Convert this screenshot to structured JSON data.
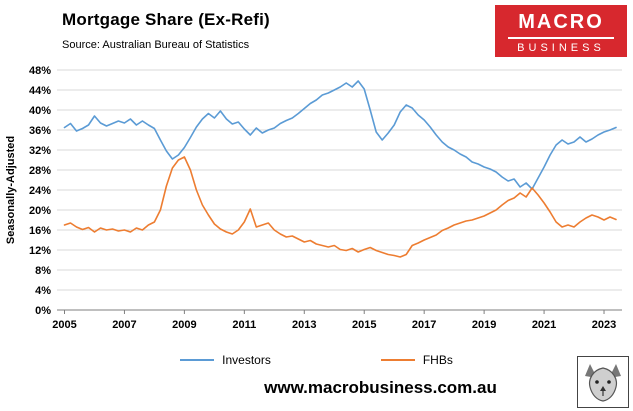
{
  "header": {
    "title": "Mortgage Share (Ex-Refi)",
    "source": "Source: Australian Bureau of Statistics",
    "logo": {
      "line1": "MACRO",
      "line2": "BUSINESS",
      "bg_color": "#d7282e"
    }
  },
  "footer": {
    "url": "www.macrobusiness.com.au"
  },
  "chart_data": {
    "type": "line",
    "title": "Mortgage Share (Ex-Refi)",
    "xlabel": "",
    "ylabel": "Seasonally-Adjusted",
    "ylim": [
      0,
      48
    ],
    "y_tick_step": 4,
    "y_tick_suffix": "%",
    "xlim": [
      2004.75,
      2023.6
    ],
    "x_ticks": [
      2005,
      2007,
      2009,
      2011,
      2013,
      2015,
      2017,
      2019,
      2021,
      2023
    ],
    "grid": "horizontal",
    "legend_position": "bottom",
    "x": [
      2005.0,
      2005.2,
      2005.4,
      2005.6,
      2005.8,
      2006.0,
      2006.2,
      2006.4,
      2006.6,
      2006.8,
      2007.0,
      2007.2,
      2007.4,
      2007.6,
      2007.8,
      2008.0,
      2008.2,
      2008.4,
      2008.6,
      2008.8,
      2009.0,
      2009.2,
      2009.4,
      2009.6,
      2009.8,
      2010.0,
      2010.2,
      2010.4,
      2010.6,
      2010.8,
      2011.0,
      2011.2,
      2011.4,
      2011.6,
      2011.8,
      2012.0,
      2012.2,
      2012.4,
      2012.6,
      2012.8,
      2013.0,
      2013.2,
      2013.4,
      2013.6,
      2013.8,
      2014.0,
      2014.2,
      2014.4,
      2014.6,
      2014.8,
      2015.0,
      2015.2,
      2015.4,
      2015.6,
      2015.8,
      2016.0,
      2016.2,
      2016.4,
      2016.6,
      2016.8,
      2017.0,
      2017.2,
      2017.4,
      2017.6,
      2017.8,
      2018.0,
      2018.2,
      2018.4,
      2018.6,
      2018.8,
      2019.0,
      2019.2,
      2019.4,
      2019.6,
      2019.8,
      2020.0,
      2020.2,
      2020.4,
      2020.6,
      2020.8,
      2021.0,
      2021.2,
      2021.4,
      2021.6,
      2021.8,
      2022.0,
      2022.2,
      2022.4,
      2022.6,
      2022.8,
      2023.0,
      2023.2,
      2023.4
    ],
    "series": [
      {
        "name": "Investors",
        "color": "#5B9BD5",
        "values": [
          36.5,
          37.3,
          35.8,
          36.3,
          37.0,
          38.8,
          37.4,
          36.8,
          37.3,
          37.8,
          37.4,
          38.2,
          37.0,
          37.8,
          37.0,
          36.3,
          34.0,
          31.8,
          30.2,
          31.0,
          32.5,
          34.5,
          36.6,
          38.2,
          39.3,
          38.4,
          39.8,
          38.2,
          37.2,
          37.6,
          36.2,
          35.0,
          36.4,
          35.4,
          36.0,
          36.4,
          37.3,
          37.9,
          38.4,
          39.3,
          40.3,
          41.3,
          42.0,
          43.0,
          43.4,
          44.0,
          44.6,
          45.4,
          44.6,
          45.8,
          44.2,
          40.0,
          35.6,
          34.0,
          35.4,
          37.0,
          39.6,
          41.0,
          40.4,
          39.0,
          38.0,
          36.6,
          35.0,
          33.6,
          32.6,
          32.0,
          31.2,
          30.6,
          29.6,
          29.2,
          28.6,
          28.2,
          27.6,
          26.6,
          25.8,
          26.2,
          24.6,
          25.4,
          24.2,
          26.4,
          28.6,
          31.0,
          33.0,
          34.0,
          33.2,
          33.6,
          34.6,
          33.6,
          34.2,
          35.0,
          35.6,
          36.0,
          36.5
        ]
      },
      {
        "name": "FHBs",
        "color": "#ED7D31",
        "values": [
          17.0,
          17.4,
          16.6,
          16.1,
          16.5,
          15.6,
          16.4,
          16.0,
          16.2,
          15.8,
          16.0,
          15.6,
          16.4,
          16.0,
          17.0,
          17.6,
          20.0,
          24.8,
          28.4,
          30.0,
          30.6,
          28.0,
          24.0,
          21.0,
          19.0,
          17.2,
          16.2,
          15.6,
          15.2,
          16.0,
          17.6,
          20.2,
          16.6,
          17.0,
          17.4,
          16.0,
          15.2,
          14.6,
          14.8,
          14.2,
          13.6,
          13.9,
          13.2,
          12.9,
          12.6,
          12.9,
          12.1,
          11.9,
          12.3,
          11.6,
          12.1,
          12.5,
          11.9,
          11.5,
          11.1,
          10.9,
          10.6,
          11.1,
          12.9,
          13.4,
          14.0,
          14.5,
          15.0,
          15.9,
          16.4,
          17.0,
          17.4,
          17.8,
          18.0,
          18.4,
          18.8,
          19.4,
          20.0,
          21.0,
          21.9,
          22.4,
          23.4,
          22.6,
          24.4,
          23.0,
          21.4,
          19.6,
          17.6,
          16.6,
          17.0,
          16.6,
          17.6,
          18.4,
          19.0,
          18.6,
          18.0,
          18.6,
          18.1
        ]
      }
    ]
  }
}
